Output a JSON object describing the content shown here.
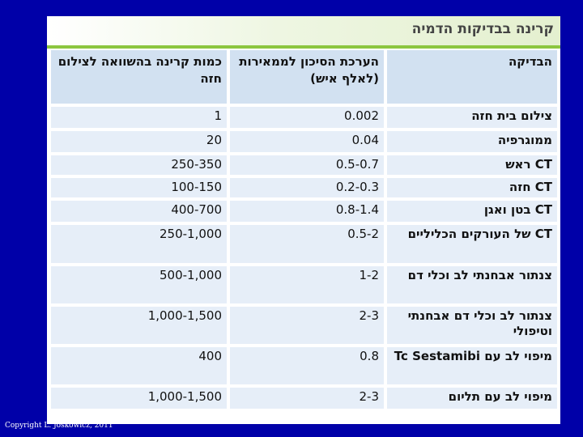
{
  "title": "קרינה בבדיקות הדמיה",
  "headers": {
    "test": "הבדיקה",
    "risk": "הערכת הסיכון לממאירות (לאלף איש)",
    "dose": "כמות קרינה בהשוואה לצילום חזה"
  },
  "rows": [
    {
      "test": "צילום בית חזה",
      "risk": "0.002",
      "dose": "1"
    },
    {
      "test": "ממוגרפיה",
      "risk": "0.04",
      "dose": "20"
    },
    {
      "test": "CT ראש",
      "risk": "0.5-0.7",
      "dose": "250-350"
    },
    {
      "test": "CT חזה",
      "risk": "0.2-0.3",
      "dose": "100-150"
    },
    {
      "test": "CT בטן ואגן",
      "risk": "0.8-1.4",
      "dose": "400-700"
    },
    {
      "test": "CT של העורקים הכליליים",
      "risk": "0.5-2",
      "dose": "250-1,000"
    },
    {
      "test": "צנתור אבחנתי לב וכלי דם",
      "risk": "1-2",
      "dose": "500-1,000"
    },
    {
      "test": "צנתור לב וכלי דם אבחנתי וטיפולי",
      "risk": "2-3",
      "dose": "1,000-1,500"
    },
    {
      "test": "מיפוי לב עם Tc Sestamibi",
      "risk": "0.8",
      "dose": "400"
    },
    {
      "test": "מיפוי לב עם תליום",
      "risk": "2-3",
      "dose": "1,000-1,500"
    }
  ],
  "copyright": "Copyright L. Joskowicz, 2011"
}
